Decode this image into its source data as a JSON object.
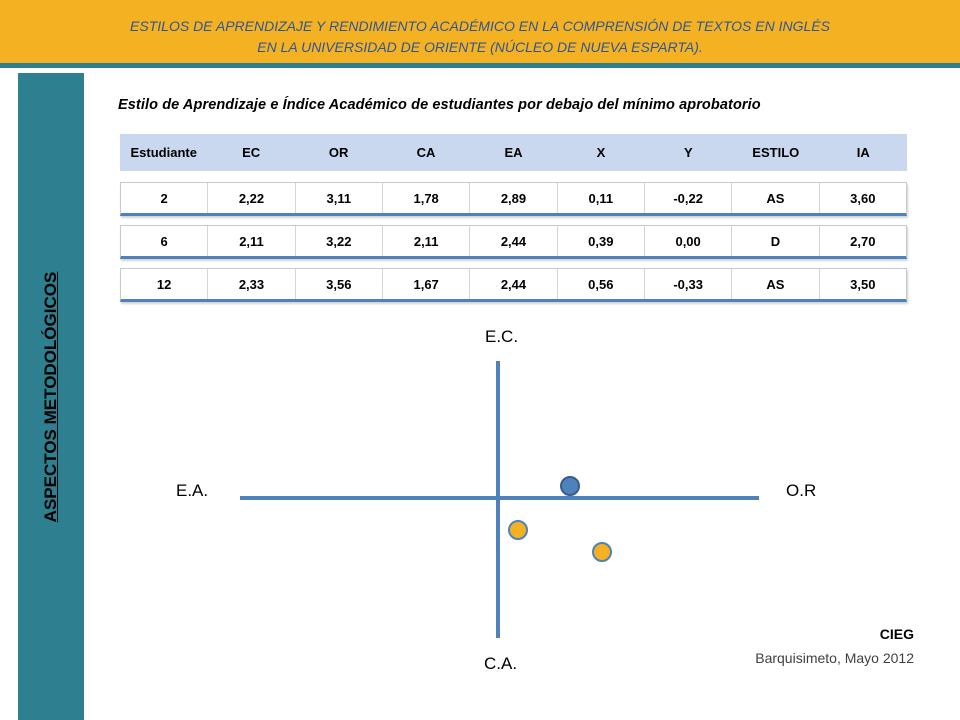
{
  "banner": {
    "line1": "ESTILOS DE APRENDIZAJE Y RENDIMIENTO ACADÉMICO EN LA COMPRENSIÓN DE TEXTOS EN INGLÉS",
    "line2": "EN LA UNIVERSIDAD DE ORIENTE (NÚCLEO DE NUEVA ESPARTA)."
  },
  "sidebar": {
    "label": "ASPECTOS METODOLÓGICOS"
  },
  "subtitle": "Estilo de Aprendizaje e Índice Académico de estudiantes por debajo del mínimo aprobatorio",
  "table": {
    "headers": [
      "Estudiante",
      "EC",
      "OR",
      "CA",
      "EA",
      "X",
      "Y",
      "ESTILO",
      "IA"
    ],
    "rows": [
      [
        "2",
        "2,22",
        "3,11",
        "1,78",
        "2,89",
        "0,11",
        "-0,22",
        "AS",
        "3,60"
      ],
      [
        "6",
        "2,11",
        "3,22",
        "2,11",
        "2,44",
        "0,39",
        "0,00",
        "D",
        "2,70"
      ],
      [
        "12",
        "2,33",
        "3,56",
        "1,67",
        "2,44",
        "0,56",
        "-0,33",
        "AS",
        "3,50"
      ]
    ]
  },
  "quadrant": {
    "top_label": "E.C.",
    "bottom_label": "C.A.",
    "left_label": "E.A.",
    "right_label": "O.R",
    "axis_color": "#4f81bd",
    "points": [
      {
        "x": 0.39,
        "y": 0.0,
        "color": "#4f81bd"
      },
      {
        "x": 0.11,
        "y": -0.22,
        "color": "#f4b223"
      },
      {
        "x": 0.56,
        "y": -0.33,
        "color": "#f4b223"
      }
    ]
  },
  "footer": {
    "org": "CIEG",
    "place_date": "Barquisimeto, Mayo 2012"
  },
  "colors": {
    "banner": "#f4b223",
    "banner_text": "#2f5597",
    "sidebar": "#2e7f8f",
    "table_header": "#c9d8ef"
  }
}
